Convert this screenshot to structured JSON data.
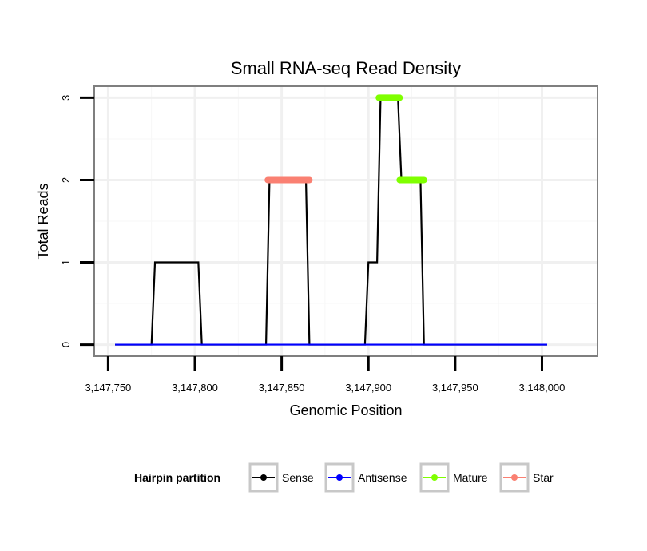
{
  "chart_data": {
    "type": "line",
    "title": "Small RNA-seq Read Density",
    "xlabel": "Genomic Position",
    "ylabel": "Total Reads",
    "xlim": [
      3147742,
      3148032
    ],
    "ylim": [
      -0.14,
      3.14
    ],
    "x_ticks": [
      3147750,
      3147800,
      3147850,
      3147900,
      3147950,
      3148000
    ],
    "x_tick_labels": [
      "3,147,750",
      "3,147,800",
      "3,147,850",
      "3,147,900",
      "3,147,950",
      "3,148,000"
    ],
    "y_ticks": [
      0,
      1,
      2,
      3
    ],
    "y_tick_labels": [
      "0",
      "1",
      "2",
      "3"
    ],
    "grid": true,
    "legend": {
      "title": "Hairpin partition",
      "position": "bottom",
      "entries": [
        {
          "name": "Sense",
          "color": "#000000"
        },
        {
          "name": "Antisense",
          "color": "#0000ff"
        },
        {
          "name": "Mature",
          "color": "#7fff00"
        },
        {
          "name": "Star",
          "color": "#fa8072"
        }
      ]
    },
    "series": [
      {
        "name": "Sense",
        "color": "#000000",
        "x": [
          3147754,
          3147775,
          3147777,
          3147802,
          3147804,
          3147841,
          3147843,
          3147864,
          3147866,
          3147898,
          3147900,
          3147905,
          3147907,
          3147917,
          3147919,
          3147930,
          3147932,
          3148003
        ],
        "y": [
          0,
          0,
          1,
          1,
          0,
          0,
          2,
          2,
          0,
          0,
          1,
          1,
          3,
          3,
          2,
          2,
          0,
          0
        ]
      },
      {
        "name": "Antisense",
        "color": "#0000ff",
        "x": [
          3147754,
          3148003
        ],
        "y": [
          0,
          0
        ]
      },
      {
        "name": "Mature",
        "color": "#7fff00",
        "segments": [
          {
            "x": [
              3147906,
              3147918
            ],
            "y": 3
          },
          {
            "x": [
              3147918,
              3147932
            ],
            "y": 2
          }
        ]
      },
      {
        "name": "Star",
        "color": "#fa8072",
        "segments": [
          {
            "x": [
              3147842,
              3147866
            ],
            "y": 2
          }
        ]
      }
    ]
  }
}
